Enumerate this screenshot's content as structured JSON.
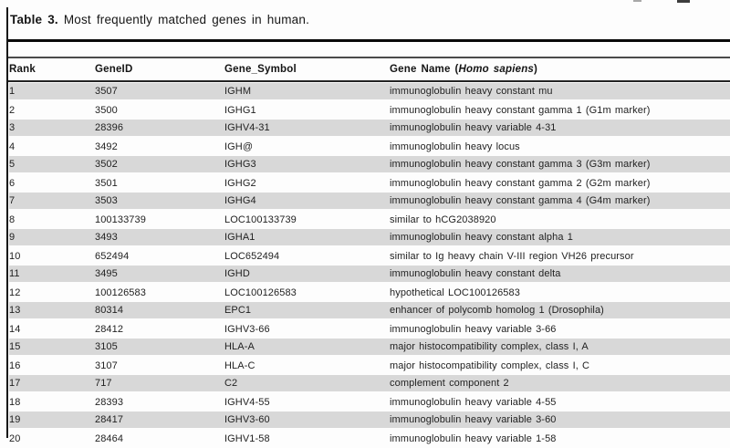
{
  "caption": {
    "label": "Table 3.",
    "text": " Most frequently matched genes in human."
  },
  "headers": {
    "rank": "Rank",
    "gene_id": "GeneID",
    "gene_symbol": "Gene_Symbol",
    "gene_name_prefix": "Gene Name (",
    "gene_name_species": "Homo sapiens",
    "gene_name_suffix": ")"
  },
  "table": {
    "rows": [
      [
        "1",
        "3507",
        "IGHM",
        "immunoglobulin heavy constant mu"
      ],
      [
        "2",
        "3500",
        "IGHG1",
        "immunoglobulin heavy constant gamma 1 (G1m marker)"
      ],
      [
        "3",
        "28396",
        "IGHV4-31",
        "immunoglobulin heavy variable 4-31"
      ],
      [
        "4",
        "3492",
        "IGH@",
        "immunoglobulin heavy locus"
      ],
      [
        "5",
        "3502",
        "IGHG3",
        "immunoglobulin heavy constant gamma 3 (G3m marker)"
      ],
      [
        "6",
        "3501",
        "IGHG2",
        "immunoglobulin heavy constant gamma 2 (G2m marker)"
      ],
      [
        "7",
        "3503",
        "IGHG4",
        "immunoglobulin heavy constant gamma 4 (G4m marker)"
      ],
      [
        "8",
        "100133739",
        "LOC100133739",
        "similar to hCG2038920"
      ],
      [
        "9",
        "3493",
        "IGHA1",
        "immunoglobulin heavy constant alpha 1"
      ],
      [
        "10",
        "652494",
        "LOC652494",
        "similar to Ig heavy chain V-III region VH26 precursor"
      ],
      [
        "11",
        "3495",
        "IGHD",
        "immunoglobulin heavy constant delta"
      ],
      [
        "12",
        "100126583",
        "LOC100126583",
        "hypothetical LOC100126583"
      ],
      [
        "13",
        "80314",
        "EPC1",
        "enhancer of polycomb homolog 1 (Drosophila)"
      ],
      [
        "14",
        "28412",
        "IGHV3-66",
        "immunoglobulin heavy variable 3-66"
      ],
      [
        "15",
        "3105",
        "HLA-A",
        "major histocompatibility complex, class I, A"
      ],
      [
        "16",
        "3107",
        "HLA-C",
        "major histocompatibility complex, class I, C"
      ],
      [
        "17",
        "717",
        "C2",
        "complement component 2"
      ],
      [
        "18",
        "28393",
        "IGHV4-55",
        "immunoglobulin heavy variable 4-55"
      ],
      [
        "19",
        "28417",
        "IGHV3-60",
        "immunoglobulin heavy variable 3-60"
      ],
      [
        "20",
        "28464",
        "IGHV1-58",
        "immunoglobulin heavy variable 1-58"
      ]
    ]
  },
  "colors": {
    "stripe": "#d8d8d8",
    "page_background": "#fdfdfd",
    "text": "#1b1b1b",
    "rule_thick": "#090909",
    "rule_thin": "#4a4a4a"
  }
}
